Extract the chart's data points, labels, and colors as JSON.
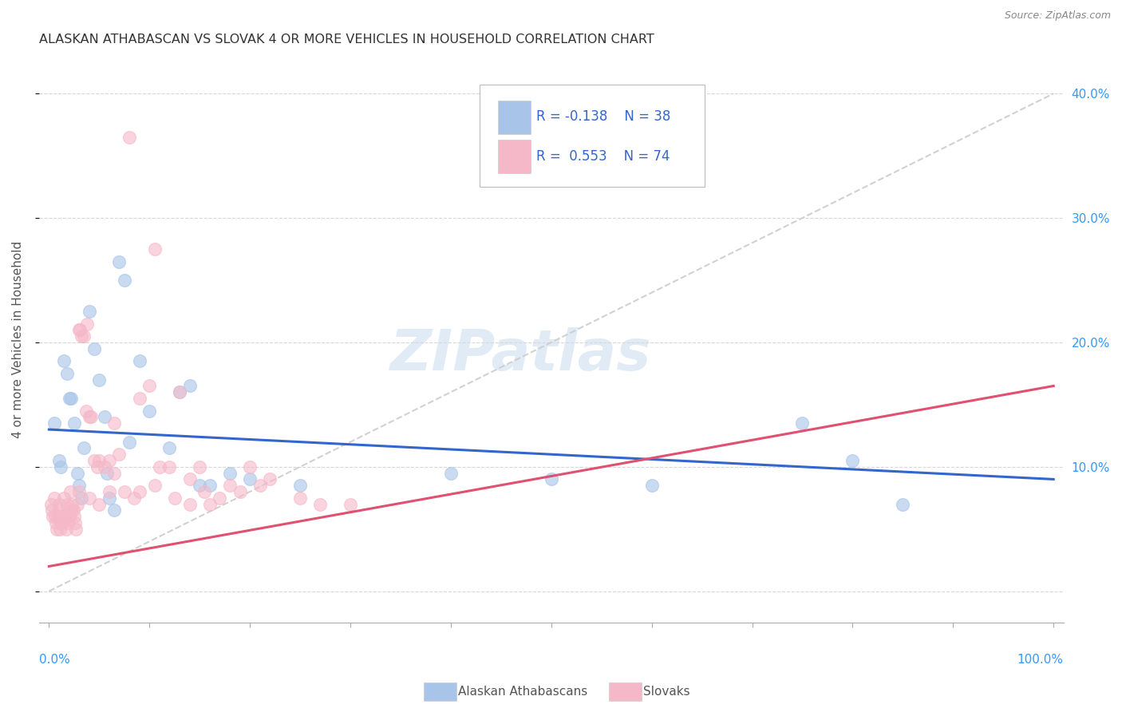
{
  "title": "ALASKAN ATHABASCAN VS SLOVAK 4 OR MORE VEHICLES IN HOUSEHOLD CORRELATION CHART",
  "source": "Source: ZipAtlas.com",
  "ylabel": "4 or more Vehicles in Household",
  "xlim": [
    0.0,
    100.0
  ],
  "ylim": [
    0.0,
    42.0
  ],
  "blue_color": "#a8c4e8",
  "pink_color": "#f5b8c8",
  "blue_line_color": "#3366cc",
  "pink_line_color": "#e05070",
  "diag_line_color": "#cccccc",
  "watermark_text": "ZIPatlas",
  "blue_line": {
    "x0": 0,
    "y0": 13.0,
    "x1": 100,
    "y1": 9.0
  },
  "pink_line": {
    "x0": 0,
    "y0": 2.0,
    "x1": 100,
    "y1": 16.5
  },
  "blue_scatter": [
    [
      0.5,
      13.5
    ],
    [
      1.0,
      10.5
    ],
    [
      1.2,
      10.0
    ],
    [
      1.5,
      18.5
    ],
    [
      1.8,
      17.5
    ],
    [
      2.0,
      15.5
    ],
    [
      2.2,
      15.5
    ],
    [
      2.5,
      13.5
    ],
    [
      2.8,
      9.5
    ],
    [
      3.0,
      8.5
    ],
    [
      3.2,
      7.5
    ],
    [
      3.5,
      11.5
    ],
    [
      4.0,
      22.5
    ],
    [
      4.5,
      19.5
    ],
    [
      5.0,
      17.0
    ],
    [
      5.5,
      14.0
    ],
    [
      5.8,
      9.5
    ],
    [
      6.0,
      7.5
    ],
    [
      6.5,
      6.5
    ],
    [
      7.0,
      26.5
    ],
    [
      7.5,
      25.0
    ],
    [
      8.0,
      12.0
    ],
    [
      9.0,
      18.5
    ],
    [
      10.0,
      14.5
    ],
    [
      12.0,
      11.5
    ],
    [
      13.0,
      16.0
    ],
    [
      14.0,
      16.5
    ],
    [
      15.0,
      8.5
    ],
    [
      16.0,
      8.5
    ],
    [
      18.0,
      9.5
    ],
    [
      20.0,
      9.0
    ],
    [
      25.0,
      8.5
    ],
    [
      40.0,
      9.5
    ],
    [
      50.0,
      9.0
    ],
    [
      60.0,
      8.5
    ],
    [
      75.0,
      13.5
    ],
    [
      80.0,
      10.5
    ],
    [
      85.0,
      7.0
    ]
  ],
  "pink_scatter": [
    [
      0.2,
      7.0
    ],
    [
      0.3,
      6.5
    ],
    [
      0.4,
      6.0
    ],
    [
      0.5,
      7.5
    ],
    [
      0.6,
      6.0
    ],
    [
      0.7,
      5.5
    ],
    [
      0.8,
      5.0
    ],
    [
      0.9,
      6.0
    ],
    [
      1.0,
      6.5
    ],
    [
      1.0,
      7.0
    ],
    [
      1.1,
      5.0
    ],
    [
      1.2,
      5.5
    ],
    [
      1.3,
      5.5
    ],
    [
      1.4,
      6.0
    ],
    [
      1.5,
      7.5
    ],
    [
      1.6,
      6.0
    ],
    [
      1.7,
      5.0
    ],
    [
      1.8,
      7.0
    ],
    [
      1.9,
      5.5
    ],
    [
      2.0,
      6.0
    ],
    [
      2.1,
      8.0
    ],
    [
      2.2,
      6.5
    ],
    [
      2.3,
      7.0
    ],
    [
      2.4,
      6.5
    ],
    [
      2.5,
      6.0
    ],
    [
      2.6,
      5.5
    ],
    [
      2.7,
      5.0
    ],
    [
      2.8,
      7.0
    ],
    [
      3.0,
      21.0
    ],
    [
      3.1,
      21.0
    ],
    [
      3.2,
      20.5
    ],
    [
      3.5,
      20.5
    ],
    [
      3.7,
      14.5
    ],
    [
      3.8,
      21.5
    ],
    [
      4.0,
      14.0
    ],
    [
      4.2,
      14.0
    ],
    [
      4.5,
      10.5
    ],
    [
      4.8,
      10.0
    ],
    [
      5.0,
      10.5
    ],
    [
      5.5,
      10.0
    ],
    [
      6.0,
      10.5
    ],
    [
      6.5,
      13.5
    ],
    [
      7.0,
      11.0
    ],
    [
      8.0,
      36.5
    ],
    [
      9.0,
      15.5
    ],
    [
      10.0,
      16.5
    ],
    [
      10.5,
      27.5
    ],
    [
      11.0,
      10.0
    ],
    [
      12.0,
      10.0
    ],
    [
      13.0,
      16.0
    ],
    [
      14.0,
      9.0
    ],
    [
      15.0,
      10.0
    ],
    [
      16.0,
      7.0
    ],
    [
      18.0,
      8.5
    ],
    [
      20.0,
      10.0
    ],
    [
      22.0,
      9.0
    ],
    [
      25.0,
      7.5
    ],
    [
      27.0,
      7.0
    ],
    [
      30.0,
      7.0
    ],
    [
      6.5,
      9.5
    ],
    [
      3.0,
      8.0
    ],
    [
      4.0,
      7.5
    ],
    [
      5.0,
      7.0
    ],
    [
      6.0,
      8.0
    ],
    [
      7.5,
      8.0
    ],
    [
      8.5,
      7.5
    ],
    [
      9.0,
      8.0
    ],
    [
      10.5,
      8.5
    ],
    [
      12.5,
      7.5
    ],
    [
      14.0,
      7.0
    ],
    [
      15.5,
      8.0
    ],
    [
      17.0,
      7.5
    ],
    [
      19.0,
      8.0
    ],
    [
      21.0,
      8.5
    ]
  ]
}
